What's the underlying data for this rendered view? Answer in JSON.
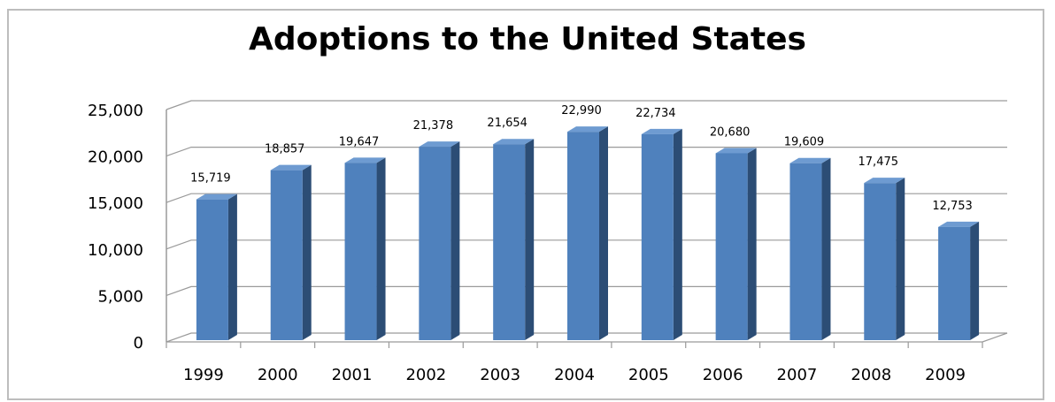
{
  "chart_data": {
    "type": "bar",
    "title": "Adoptions to the United States",
    "categories": [
      "1999",
      "2000",
      "2001",
      "2002",
      "2003",
      "2004",
      "2005",
      "2006",
      "2007",
      "2008",
      "2009"
    ],
    "values": [
      15719,
      18857,
      19647,
      21378,
      21654,
      22990,
      22734,
      20680,
      19609,
      17475,
      12753
    ],
    "value_labels": [
      "15,719",
      "18,857",
      "19,647",
      "21,378",
      "21,654",
      "22,990",
      "22,734",
      "20,680",
      "19,609",
      "17,475",
      "12,753"
    ],
    "y_ticks": [
      "0",
      "5,000",
      "10,000",
      "15,000",
      "20,000",
      "25,000"
    ],
    "y_tick_values": [
      0,
      5000,
      10000,
      15000,
      20000,
      25000
    ],
    "ylim": [
      0,
      25000
    ],
    "xlabel": "",
    "ylabel": "",
    "grid": true,
    "legend": "none",
    "colors": {
      "bar_front": "#4f81bd",
      "bar_side": "#2c4d75",
      "bar_top": "#6e9bd1",
      "grid": "#9a9a9a"
    }
  }
}
